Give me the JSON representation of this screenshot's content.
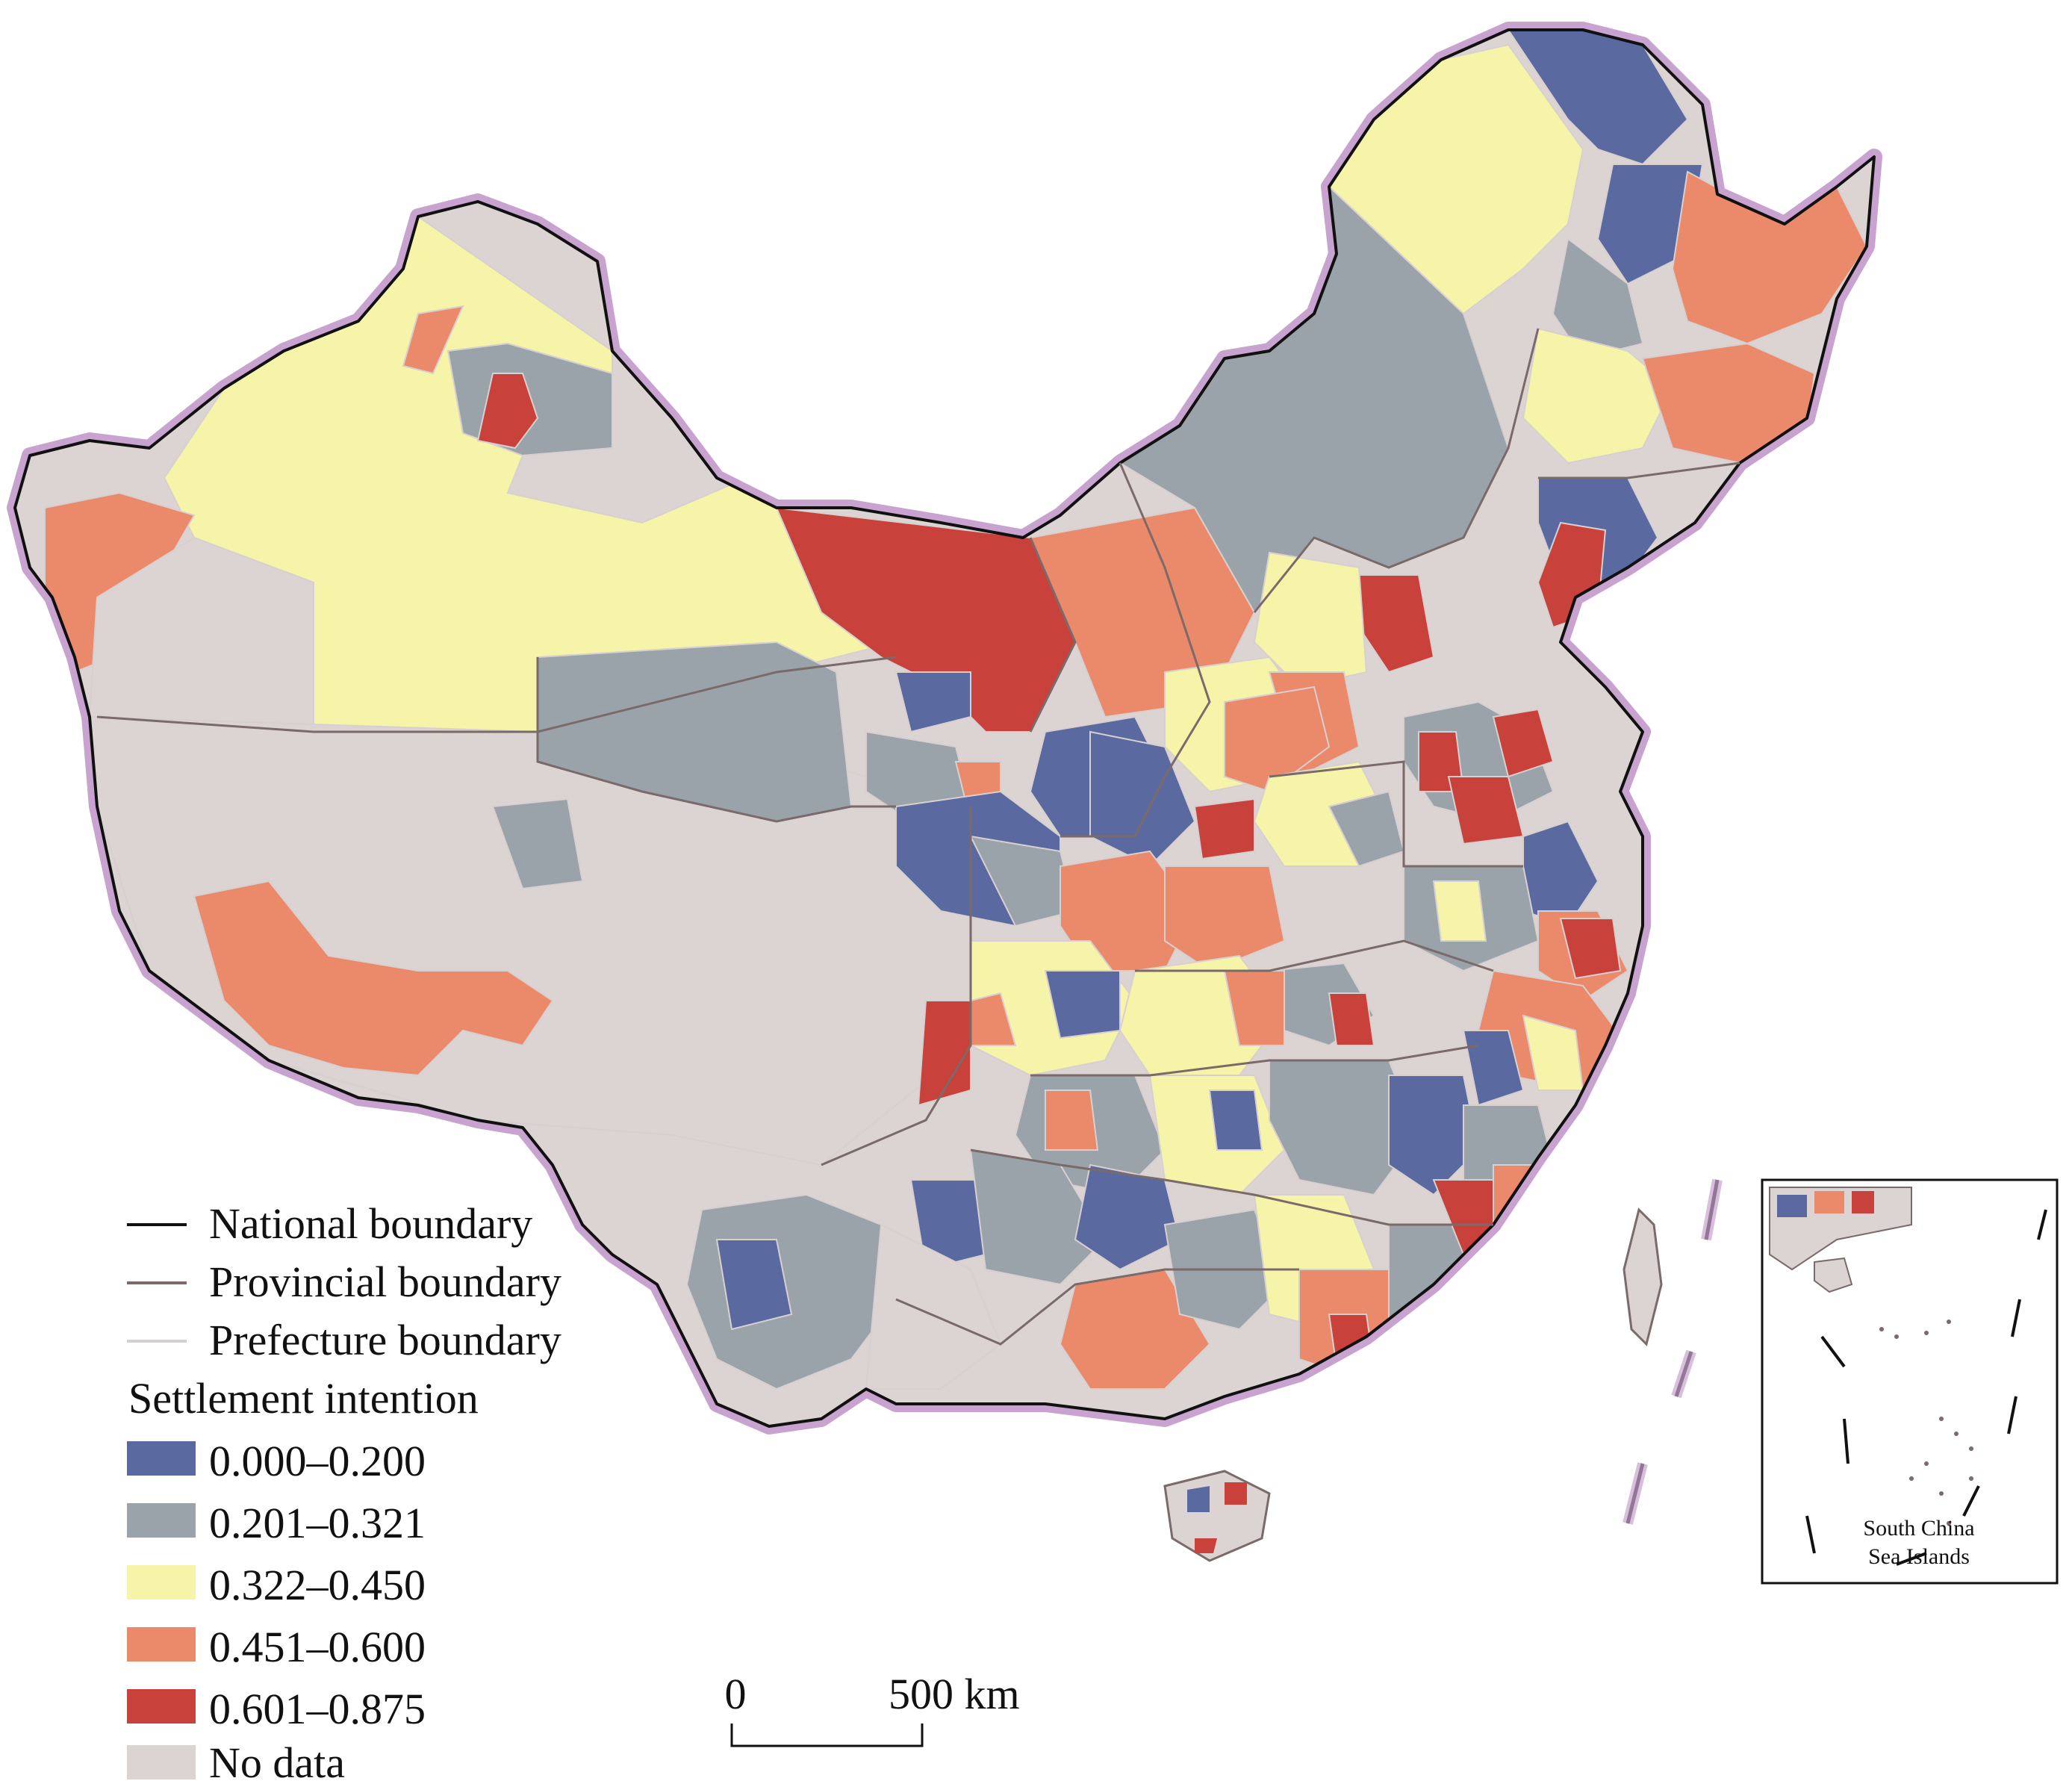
{
  "legend": {
    "lines": [
      {
        "label": "National boundary",
        "color": "#111111"
      },
      {
        "label": "Provincial boundary",
        "color": "#7a6a6a"
      },
      {
        "label": "Prefecture boundary",
        "color": "#d8d0d0"
      }
    ],
    "title": "Settlement intention",
    "classes": [
      {
        "label": "0.000–0.200",
        "color": "#5a6aa0"
      },
      {
        "label": "0.201–0.321",
        "color": "#9aa3a9"
      },
      {
        "label": "0.322–0.450",
        "color": "#f6f4a8"
      },
      {
        "label": "0.451–0.600",
        "color": "#eb8a6a"
      },
      {
        "label": "0.601–0.875",
        "color": "#c8413a"
      },
      {
        "label": "No data",
        "color": "#dcd4d3"
      }
    ]
  },
  "scale_bar": {
    "start": "0",
    "end": "500 km"
  },
  "inset": {
    "line1": "South China",
    "line2": "Sea Islands"
  },
  "palette": {
    "halo": "#c9a3cf",
    "sea": "#ffffff"
  }
}
